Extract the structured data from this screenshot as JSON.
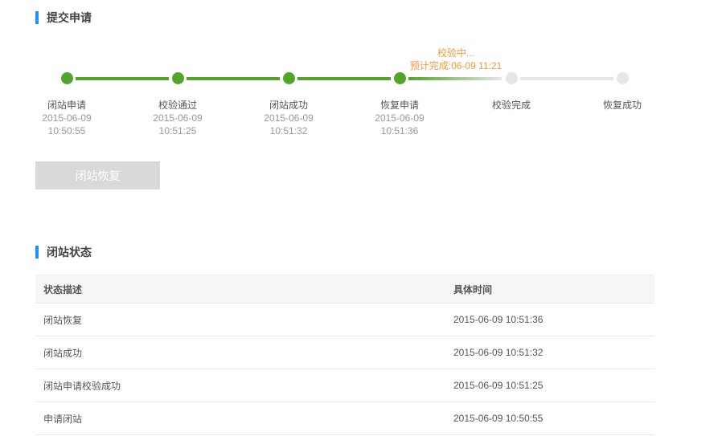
{
  "section1": {
    "title": "提交申请"
  },
  "steps": [
    {
      "label": "闭站申请",
      "date": "2015-06-09",
      "time": "10:50:55",
      "status": "done"
    },
    {
      "label": "校验通过",
      "date": "2015-06-09",
      "time": "10:51:25",
      "status": "done"
    },
    {
      "label": "闭站成功",
      "date": "2015-06-09",
      "time": "10:51:32",
      "status": "done"
    },
    {
      "label": "恢复申请",
      "date": "2015-06-09",
      "time": "10:51:36",
      "status": "done"
    },
    {
      "label": "校验完成",
      "status": "pending"
    },
    {
      "label": "恢复成功",
      "status": "pending"
    }
  ],
  "progress_note": {
    "status": "校验中...",
    "eta": "预计完成:06-09 11:21"
  },
  "action_button": {
    "label": "闭站恢复",
    "disabled": true
  },
  "section2": {
    "title": "闭站状态"
  },
  "table": {
    "headers": [
      "状态描述",
      "具体时间"
    ],
    "rows": [
      [
        "闭站恢复",
        "2015-06-09 10:51:36"
      ],
      [
        "闭站成功",
        "2015-06-09 10:51:32"
      ],
      [
        "闭站申请校验成功",
        "2015-06-09 10:51:25"
      ],
      [
        "申请闭站",
        "2015-06-09 10:50:55"
      ]
    ]
  },
  "colors": {
    "accent": "#1e90ff",
    "done": "#52a52a",
    "pending": "#e6e6e6",
    "note": "#f39a3c"
  }
}
